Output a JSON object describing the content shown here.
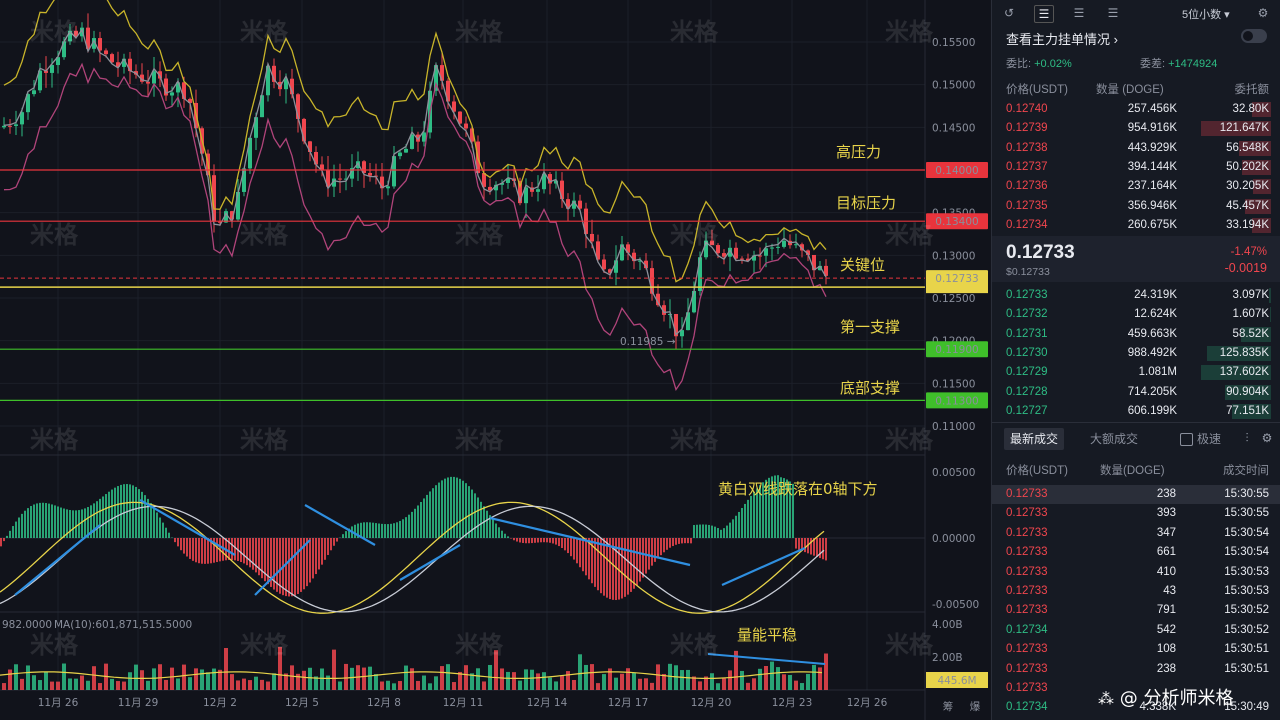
{
  "chart": {
    "price_ticks": [
      "0.15500",
      "0.15000",
      "0.14500",
      "0.14000",
      "0.13500",
      "0.13000",
      "0.12500",
      "0.12000",
      "0.11500",
      "0.11000"
    ],
    "macd_ticks": [
      "0.00500",
      "0.00000",
      "-0.00500"
    ],
    "volume_ticks": [
      "4.00B",
      "2.00B"
    ],
    "x_ticks": [
      "11月 26",
      "11月 29",
      "12月 2",
      "12月 5",
      "12月 8",
      "12月 11",
      "12月 14",
      "12月 17",
      "12月 20",
      "12月 23",
      "12月 26"
    ],
    "levels": [
      {
        "name": "高压力",
        "value": "0.14000",
        "color": "#e8343c"
      },
      {
        "name": "目标压力",
        "value": "0.13400",
        "color": "#e8343c"
      },
      {
        "name": "关键位",
        "value": "0.12733",
        "color": "#e8d44a"
      },
      {
        "name": "第一支撑",
        "value": "0.11900",
        "color": "#3fbf2a"
      },
      {
        "name": "底部支撑",
        "value": "0.11300",
        "color": "#3fbf2a"
      }
    ],
    "low_marker": "0.11985",
    "macd_note": "黄白双线跌落在0轴下方",
    "volume_note": "量能平稳",
    "ma_label": "MA(10):601,871,515.5000",
    "ma_prefix": "982.0000",
    "volume_current": "445.6M",
    "bottom_tag_1": "筹",
    "bottom_tag_2": "爆",
    "watermark": "米格"
  },
  "panel": {
    "decimal_select": "5位小数",
    "main_orders_link": "查看主力挂单情况",
    "wei_bi_label": "委比:",
    "wei_bi_value": "+0.02%",
    "wei_cha_label": "委差:",
    "wei_cha_value": "+1474924",
    "col_price": "价格(USDT)",
    "col_qty": "数量 (DOGE)",
    "col_amount": "委托额",
    "asks": [
      {
        "price": "0.12740",
        "qty": "257.456K",
        "amt": "32.80K",
        "fill": 0.27
      },
      {
        "price": "0.12739",
        "qty": "954.916K",
        "amt": "121.647K",
        "fill": 1.0
      },
      {
        "price": "0.12738",
        "qty": "443.929K",
        "amt": "56.548K",
        "fill": 0.46
      },
      {
        "price": "0.12737",
        "qty": "394.144K",
        "amt": "50.202K",
        "fill": 0.41
      },
      {
        "price": "0.12736",
        "qty": "237.164K",
        "amt": "30.205K",
        "fill": 0.25
      },
      {
        "price": "0.12735",
        "qty": "356.946K",
        "amt": "45.457K",
        "fill": 0.37
      },
      {
        "price": "0.12734",
        "qty": "260.675K",
        "amt": "33.194K",
        "fill": 0.27
      }
    ],
    "last_price": "0.12733",
    "last_price_sub": "$0.12733",
    "change_pct": "-1.47%",
    "change_abs": "-0.0019",
    "bids": [
      {
        "price": "0.12733",
        "qty": "24.319K",
        "amt": "3.097K",
        "fill": 0.03
      },
      {
        "price": "0.12732",
        "qty": "12.624K",
        "amt": "1.607K",
        "fill": 0.02
      },
      {
        "price": "0.12731",
        "qty": "459.663K",
        "amt": "58.52K",
        "fill": 0.43
      },
      {
        "price": "0.12730",
        "qty": "988.492K",
        "amt": "125.835K",
        "fill": 0.91
      },
      {
        "price": "0.12729",
        "qty": "1.081M",
        "amt": "137.602K",
        "fill": 1.0
      },
      {
        "price": "0.12728",
        "qty": "714.205K",
        "amt": "90.904K",
        "fill": 0.66
      },
      {
        "price": "0.12727",
        "qty": "606.199K",
        "amt": "77.151K",
        "fill": 0.56
      }
    ],
    "tab_latest": "最新成交",
    "tab_big": "大额成交",
    "toggle_label": "极速",
    "trades_col_price": "价格(USDT)",
    "trades_col_qty": "数量(DOGE)",
    "trades_col_time": "成交时间",
    "trades": [
      {
        "price": "0.12733",
        "qty": "238",
        "time": "15:30:55",
        "side": "sell"
      },
      {
        "price": "0.12733",
        "qty": "393",
        "time": "15:30:55",
        "side": "sell"
      },
      {
        "price": "0.12733",
        "qty": "347",
        "time": "15:30:54",
        "side": "sell"
      },
      {
        "price": "0.12733",
        "qty": "661",
        "time": "15:30:54",
        "side": "sell"
      },
      {
        "price": "0.12733",
        "qty": "410",
        "time": "15:30:53",
        "side": "sell"
      },
      {
        "price": "0.12733",
        "qty": "43",
        "time": "15:30:53",
        "side": "sell"
      },
      {
        "price": "0.12733",
        "qty": "791",
        "time": "15:30:52",
        "side": "sell"
      },
      {
        "price": "0.12734",
        "qty": "542",
        "time": "15:30:52",
        "side": "buy"
      },
      {
        "price": "0.12733",
        "qty": "108",
        "time": "15:30:51",
        "side": "sell"
      },
      {
        "price": "0.12733",
        "qty": "238",
        "time": "15:30:51",
        "side": "sell"
      },
      {
        "price": "0.12733",
        "qty": "",
        "time": "",
        "side": "sell"
      },
      {
        "price": "0.12734",
        "qty": "4.338K",
        "time": "15:30:49",
        "side": "buy"
      }
    ],
    "brand": "@ 分析师米格"
  }
}
